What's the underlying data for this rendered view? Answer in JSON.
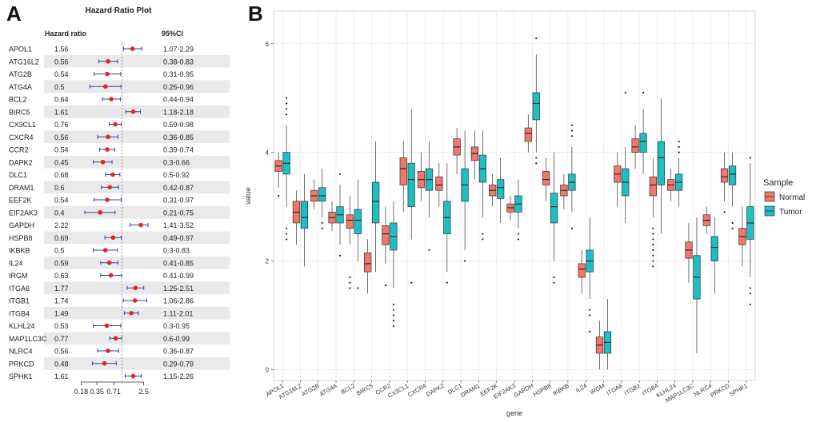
{
  "colors": {
    "normal": "#f0776c",
    "tumor": "#1dbfc0",
    "point": "#e8231a",
    "ci": "#3a3fa6",
    "band": "#e9e9e9",
    "grid": "#e6e6e6",
    "panel_bg": "#ffffff"
  },
  "chart_data": [
    {
      "panel": "A",
      "panel_label": "A",
      "type": "forest",
      "title": "Hazard Ratio Plot",
      "col_hr": "Hazard ratio",
      "col_ci": "95%CI",
      "xscale": "log",
      "xlim": [
        0.15,
        3
      ],
      "xticks": [
        0.18,
        0.35,
        0.71,
        2.5
      ],
      "xtick_labels": [
        "0.18",
        "0.35",
        "0.71",
        "2.5"
      ],
      "rows": [
        {
          "gene": "APOL1",
          "hr_label": "1.56",
          "ci_label": "1.07-2.29",
          "hr": 1.56,
          "lo": 1.07,
          "hi": 2.29
        },
        {
          "gene": "ATG16L2",
          "hr_label": "0.56",
          "ci_label": "0.38-0.83",
          "hr": 0.56,
          "lo": 0.38,
          "hi": 0.83
        },
        {
          "gene": "ATG2B",
          "hr_label": "0.54",
          "ci_label": "0.31-0.95",
          "hr": 0.54,
          "lo": 0.31,
          "hi": 0.95
        },
        {
          "gene": "ATG4A",
          "hr_label": "0.5",
          "ci_label": "0.26-0.96",
          "hr": 0.5,
          "lo": 0.26,
          "hi": 0.96
        },
        {
          "gene": "BCL2",
          "hr_label": "0.64",
          "ci_label": "0.44-0.94",
          "hr": 0.64,
          "lo": 0.44,
          "hi": 0.94
        },
        {
          "gene": "BIRC5",
          "hr_label": "1.61",
          "ci_label": "1.18-2.18",
          "hr": 1.61,
          "lo": 1.18,
          "hi": 2.18
        },
        {
          "gene": "CX3CL1",
          "hr_label": "0.76",
          "ci_label": "0.59-0.98",
          "hr": 0.76,
          "lo": 0.59,
          "hi": 0.98
        },
        {
          "gene": "CXCR4",
          "hr_label": "0.56",
          "ci_label": "0.36-0.85",
          "hr": 0.56,
          "lo": 0.36,
          "hi": 0.85
        },
        {
          "gene": "CCR2",
          "hr_label": "0.54",
          "ci_label": "0.39-0.74",
          "hr": 0.54,
          "lo": 0.39,
          "hi": 0.74
        },
        {
          "gene": "DAPK2",
          "hr_label": "0.45",
          "ci_label": "0.3-0.66",
          "hr": 0.45,
          "lo": 0.3,
          "hi": 0.66
        },
        {
          "gene": "DLC1",
          "hr_label": "0.68",
          "ci_label": "0.5-0.92",
          "hr": 0.68,
          "lo": 0.5,
          "hi": 0.92
        },
        {
          "gene": "DRAM1",
          "hr_label": "0.6",
          "ci_label": "0.42-0.87",
          "hr": 0.6,
          "lo": 0.42,
          "hi": 0.87
        },
        {
          "gene": "EEF2K",
          "hr_label": "0.54",
          "ci_label": "0.31-0.97",
          "hr": 0.54,
          "lo": 0.31,
          "hi": 0.97
        },
        {
          "gene": "EIF2AK3",
          "hr_label": "0.4",
          "ci_label": "0.21-0.75",
          "hr": 0.4,
          "lo": 0.21,
          "hi": 0.75
        },
        {
          "gene": "GAPDH",
          "hr_label": "2.22",
          "ci_label": "1.41-3.52",
          "hr": 2.22,
          "lo": 1.41,
          "hi": 3.52
        },
        {
          "gene": "HSPB8",
          "hr_label": "0.69",
          "ci_label": "0.49-0.97",
          "hr": 0.69,
          "lo": 0.49,
          "hi": 0.97
        },
        {
          "gene": "IKBKB",
          "hr_label": "0.5",
          "ci_label": "0.3-0.83",
          "hr": 0.5,
          "lo": 0.3,
          "hi": 0.83
        },
        {
          "gene": "IL24",
          "hr_label": "0.59",
          "ci_label": "0.41-0.85",
          "hr": 0.59,
          "lo": 0.41,
          "hi": 0.85
        },
        {
          "gene": "IRGM",
          "hr_label": "0.63",
          "ci_label": "0.41-0.99",
          "hr": 0.63,
          "lo": 0.41,
          "hi": 0.99
        },
        {
          "gene": "ITGA6",
          "hr_label": "1.77",
          "ci_label": "1.25-2.51",
          "hr": 1.77,
          "lo": 1.25,
          "hi": 2.51
        },
        {
          "gene": "ITGB1",
          "hr_label": "1.74",
          "ci_label": "1.06-2.86",
          "hr": 1.74,
          "lo": 1.06,
          "hi": 2.86
        },
        {
          "gene": "ITGB4",
          "hr_label": "1.49",
          "ci_label": "1.11-2.01",
          "hr": 1.49,
          "lo": 1.11,
          "hi": 2.01
        },
        {
          "gene": "KLHL24",
          "hr_label": "0.53",
          "ci_label": "0.3-0.95",
          "hr": 0.53,
          "lo": 0.3,
          "hi": 0.95
        },
        {
          "gene": "MAP1LC3C",
          "hr_label": "0.77",
          "ci_label": "0.6-0.99",
          "hr": 0.77,
          "lo": 0.6,
          "hi": 0.99
        },
        {
          "gene": "NLRC4",
          "hr_label": "0.56",
          "ci_label": "0.36-0.87",
          "hr": 0.56,
          "lo": 0.36,
          "hi": 0.87
        },
        {
          "gene": "PRKCD",
          "hr_label": "0.48",
          "ci_label": "0.29-0.79",
          "hr": 0.48,
          "lo": 0.29,
          "hi": 0.79
        },
        {
          "gene": "SPHK1",
          "hr_label": "1.61",
          "ci_label": "1.15-2.26",
          "hr": 1.61,
          "lo": 1.15,
          "hi": 2.26
        }
      ]
    },
    {
      "panel": "B",
      "panel_label": "B",
      "type": "boxplot",
      "xlabel": "gene",
      "ylabel": "value",
      "ylim": [
        -0.2,
        6.6
      ],
      "yticks": [
        0,
        2,
        4,
        6
      ],
      "legend": {
        "title": "Sample",
        "position": "right",
        "entries": [
          "Normal",
          "Tumor"
        ]
      },
      "series_names": [
        "Normal",
        "Tumor"
      ],
      "categories": [
        "APOL1",
        "ATG16L2",
        "ATG2B",
        "ATG4A",
        "BCL2",
        "BIRC5",
        "CCR2",
        "CX3CL1",
        "CXCR4",
        "DAPK2",
        "DLC1",
        "DRAM1",
        "EEF2K",
        "EIF2AK3",
        "GAPDH",
        "HSPB8",
        "IKBKB",
        "IL24",
        "IRGM",
        "ITGA6",
        "ITGB1",
        "ITGB4",
        "KLHL24",
        "MAP1LC3C",
        "NLRC4",
        "PRKCD",
        "SPHK1"
      ],
      "normal": [
        {
          "q1": 3.65,
          "med": 3.75,
          "q3": 3.85,
          "wlo": 3.35,
          "whi": 4.0,
          "out": [
            3.2
          ]
        },
        {
          "q1": 2.7,
          "med": 2.9,
          "q3": 3.1,
          "wlo": 2.3,
          "whi": 3.3,
          "out": []
        },
        {
          "q1": 3.1,
          "med": 3.2,
          "q3": 3.3,
          "wlo": 2.95,
          "whi": 3.5,
          "out": []
        },
        {
          "q1": 2.7,
          "med": 2.8,
          "q3": 2.9,
          "wlo": 2.55,
          "whi": 3.1,
          "out": []
        },
        {
          "q1": 2.6,
          "med": 2.75,
          "q3": 2.85,
          "wlo": 2.3,
          "whi": 3.2,
          "out": [
            1.6,
            1.7,
            1.5
          ]
        },
        {
          "q1": 1.8,
          "med": 1.95,
          "q3": 2.15,
          "wlo": 1.4,
          "whi": 2.4,
          "out": []
        },
        {
          "q1": 2.3,
          "med": 2.5,
          "q3": 2.65,
          "wlo": 1.95,
          "whi": 3.0,
          "out": [
            1.55
          ]
        },
        {
          "q1": 3.4,
          "med": 3.7,
          "q3": 3.9,
          "wlo": 2.9,
          "whi": 4.2,
          "out": []
        },
        {
          "q1": 3.35,
          "med": 3.5,
          "q3": 3.65,
          "wlo": 3.1,
          "whi": 4.0,
          "out": []
        },
        {
          "q1": 3.3,
          "med": 3.4,
          "q3": 3.55,
          "wlo": 3.0,
          "whi": 3.8,
          "out": []
        },
        {
          "q1": 3.95,
          "med": 4.1,
          "q3": 4.25,
          "wlo": 3.6,
          "whi": 4.45,
          "out": []
        },
        {
          "q1": 3.85,
          "med": 3.98,
          "q3": 4.1,
          "wlo": 3.5,
          "whi": 4.4,
          "out": []
        },
        {
          "q1": 3.2,
          "med": 3.3,
          "q3": 3.4,
          "wlo": 3.0,
          "whi": 3.6,
          "out": []
        },
        {
          "q1": 2.9,
          "med": 2.98,
          "q3": 3.05,
          "wlo": 2.75,
          "whi": 3.2,
          "out": []
        },
        {
          "q1": 4.2,
          "med": 4.35,
          "q3": 4.45,
          "wlo": 4.0,
          "whi": 4.7,
          "out": []
        },
        {
          "q1": 3.4,
          "med": 3.5,
          "q3": 3.65,
          "wlo": 3.1,
          "whi": 3.9,
          "out": []
        },
        {
          "q1": 3.2,
          "med": 3.3,
          "q3": 3.4,
          "wlo": 2.95,
          "whi": 3.6,
          "out": []
        },
        {
          "q1": 1.7,
          "med": 1.85,
          "q3": 1.95,
          "wlo": 1.4,
          "whi": 2.2,
          "out": []
        },
        {
          "q1": 0.3,
          "med": 0.45,
          "q3": 0.6,
          "wlo": 0.0,
          "whi": 0.9,
          "out": []
        },
        {
          "q1": 3.45,
          "med": 3.6,
          "q3": 3.75,
          "wlo": 3.0,
          "whi": 4.0,
          "out": []
        },
        {
          "q1": 4.0,
          "med": 4.1,
          "q3": 4.25,
          "wlo": 3.7,
          "whi": 4.5,
          "out": []
        },
        {
          "q1": 3.2,
          "med": 3.4,
          "q3": 3.55,
          "wlo": 2.8,
          "whi": 3.9,
          "out": [
            2.6,
            2.4,
            2.2,
            2.0,
            1.9,
            2.5,
            2.3,
            2.1
          ]
        },
        {
          "q1": 3.3,
          "med": 3.4,
          "q3": 3.5,
          "wlo": 3.1,
          "whi": 3.7,
          "out": []
        },
        {
          "q1": 2.05,
          "med": 2.2,
          "q3": 2.35,
          "wlo": 1.6,
          "whi": 2.7,
          "out": []
        },
        {
          "q1": 2.65,
          "med": 2.75,
          "q3": 2.85,
          "wlo": 2.5,
          "whi": 3.0,
          "out": []
        },
        {
          "q1": 3.45,
          "med": 3.55,
          "q3": 3.7,
          "wlo": 3.1,
          "whi": 4.0,
          "out": [
            2.9
          ]
        },
        {
          "q1": 2.3,
          "med": 2.45,
          "q3": 2.6,
          "wlo": 1.9,
          "whi": 3.0,
          "out": []
        }
      ],
      "tumor": [
        {
          "q1": 3.6,
          "med": 3.8,
          "q3": 4.0,
          "wlo": 3.0,
          "whi": 4.5,
          "out": [
            5.0,
            4.9,
            4.8,
            4.7,
            2.4,
            2.5,
            2.6
          ]
        },
        {
          "q1": 2.6,
          "med": 2.8,
          "q3": 3.1,
          "wlo": 1.9,
          "whi": 3.6,
          "out": []
        },
        {
          "q1": 3.1,
          "med": 3.2,
          "q3": 3.35,
          "wlo": 2.8,
          "whi": 3.7,
          "out": [
            2.6,
            2.7
          ]
        },
        {
          "q1": 2.7,
          "med": 2.85,
          "q3": 3.0,
          "wlo": 2.3,
          "whi": 3.4,
          "out": [
            3.6,
            2.1
          ]
        },
        {
          "q1": 2.5,
          "med": 2.75,
          "q3": 2.95,
          "wlo": 2.0,
          "whi": 3.5,
          "out": [
            1.5
          ]
        },
        {
          "q1": 2.7,
          "med": 3.1,
          "q3": 3.45,
          "wlo": 1.8,
          "whi": 4.2,
          "out": []
        },
        {
          "q1": 2.2,
          "med": 2.45,
          "q3": 2.7,
          "wlo": 1.5,
          "whi": 3.1,
          "out": [
            0.8,
            0.9,
            1.0,
            1.1,
            1.2
          ]
        },
        {
          "q1": 3.0,
          "med": 3.5,
          "q3": 3.8,
          "wlo": 2.4,
          "whi": 4.8,
          "out": [
            1.6
          ]
        },
        {
          "q1": 3.3,
          "med": 3.5,
          "q3": 3.7,
          "wlo": 2.8,
          "whi": 4.2,
          "out": [
            2.2
          ]
        },
        {
          "q1": 2.5,
          "med": 2.8,
          "q3": 3.1,
          "wlo": 1.8,
          "whi": 3.8,
          "out": [
            1.6
          ]
        },
        {
          "q1": 3.1,
          "med": 3.4,
          "q3": 3.7,
          "wlo": 2.2,
          "whi": 4.4,
          "out": [
            2.0
          ]
        },
        {
          "q1": 3.45,
          "med": 3.7,
          "q3": 3.95,
          "wlo": 2.8,
          "whi": 4.4,
          "out": [
            2.5,
            2.4
          ]
        },
        {
          "q1": 3.15,
          "med": 3.35,
          "q3": 3.5,
          "wlo": 2.7,
          "whi": 3.9,
          "out": []
        },
        {
          "q1": 2.9,
          "med": 3.05,
          "q3": 3.2,
          "wlo": 2.6,
          "whi": 3.5,
          "out": [
            2.4,
            2.5
          ]
        },
        {
          "q1": 4.6,
          "med": 4.9,
          "q3": 5.1,
          "wlo": 4.0,
          "whi": 5.8,
          "out": [
            6.1,
            3.8,
            3.9
          ]
        },
        {
          "q1": 2.7,
          "med": 3.0,
          "q3": 3.25,
          "wlo": 2.0,
          "whi": 4.0,
          "out": [
            1.7,
            1.6
          ]
        },
        {
          "q1": 3.3,
          "med": 3.45,
          "q3": 3.6,
          "wlo": 2.9,
          "whi": 4.1,
          "out": [
            4.3,
            4.4,
            4.5,
            2.6
          ]
        },
        {
          "q1": 1.8,
          "med": 2.0,
          "q3": 2.2,
          "wlo": 1.3,
          "whi": 2.8,
          "out": [
            1.0,
            1.1,
            0.7
          ]
        },
        {
          "q1": 0.3,
          "med": 0.5,
          "q3": 0.7,
          "wlo": 0.0,
          "whi": 1.3,
          "out": []
        },
        {
          "q1": 3.2,
          "med": 3.45,
          "q3": 3.7,
          "wlo": 2.7,
          "whi": 4.1,
          "out": [
            5.1
          ]
        },
        {
          "q1": 4.0,
          "med": 4.2,
          "q3": 4.35,
          "wlo": 3.6,
          "whi": 4.8,
          "out": [
            5.1
          ]
        },
        {
          "q1": 3.4,
          "med": 3.9,
          "q3": 4.2,
          "wlo": 2.5,
          "whi": 5.0,
          "out": []
        },
        {
          "q1": 3.3,
          "med": 3.45,
          "q3": 3.6,
          "wlo": 3.0,
          "whi": 3.9,
          "out": [
            4.0,
            4.1,
            4.2
          ]
        },
        {
          "q1": 1.3,
          "med": 1.7,
          "q3": 2.1,
          "wlo": 0.3,
          "whi": 2.8,
          "out": []
        },
        {
          "q1": 2.0,
          "med": 2.25,
          "q3": 2.45,
          "wlo": 1.4,
          "whi": 2.8,
          "out": []
        },
        {
          "q1": 3.4,
          "med": 3.6,
          "q3": 3.75,
          "wlo": 3.0,
          "whi": 4.0,
          "out": [
            2.6,
            2.7
          ]
        },
        {
          "q1": 2.4,
          "med": 2.7,
          "q3": 3.0,
          "wlo": 1.7,
          "whi": 3.8,
          "out": [
            1.2,
            1.4,
            1.5,
            3.9
          ]
        }
      ]
    }
  ]
}
